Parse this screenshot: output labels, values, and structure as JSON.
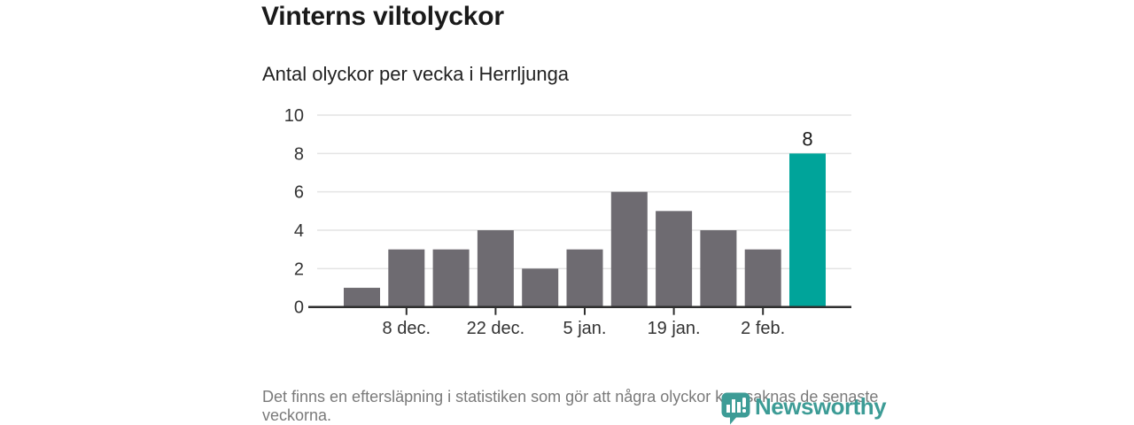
{
  "chart_data": {
    "type": "bar",
    "title": "Vinterns viltolyckor",
    "subtitle": "Antal olyckor per vecka i Herrljunga",
    "values": [
      1,
      3,
      3,
      4,
      2,
      3,
      6,
      5,
      4,
      3,
      8
    ],
    "ylim": [
      0,
      10
    ],
    "yticks": [
      0,
      2,
      4,
      6,
      8,
      10
    ],
    "x_ticks": [
      {
        "bar_index": 1,
        "label": "8 dec."
      },
      {
        "bar_index": 3,
        "label": "22 dec."
      },
      {
        "bar_index": 5,
        "label": "5 jan."
      },
      {
        "bar_index": 7,
        "label": "19 jan."
      },
      {
        "bar_index": 9,
        "label": "2 feb."
      }
    ],
    "highlight_index": 10,
    "annotations": [
      {
        "bar_index": 10,
        "label": "8"
      }
    ],
    "grid": true,
    "legend": "none",
    "colors": {
      "bar": "#6e6b71",
      "highlight": "#00a49a",
      "gridline": "#e4e4e4",
      "axis": "#2f2f2f",
      "tick_label": "#333333",
      "data_label": "#1a1a1a"
    }
  },
  "footer": {
    "note": "Det finns en eftersläpning i statistiken som gör att några olyckor kan saknas de senaste veckorna.",
    "brand": "Newsworthy",
    "brand_color": "#3d9c96"
  }
}
